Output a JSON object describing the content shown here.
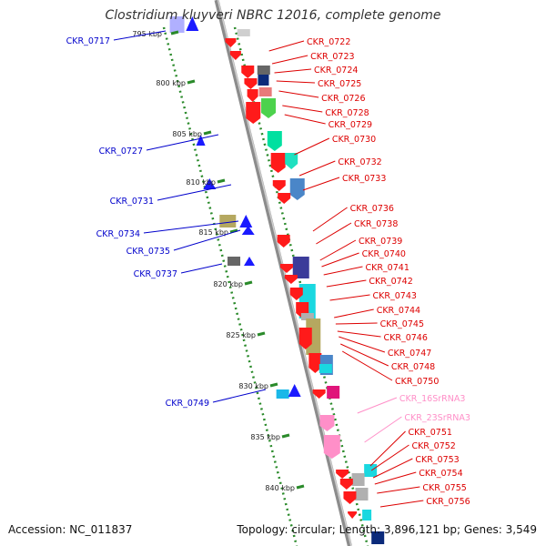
{
  "title": "Clostridium kluyveri NBRC 12016, complete genome",
  "footer": {
    "accession": "Accession: NC_011837",
    "topology": "Topology: circular; Length: 3,896,121 bp; Genes: 3,549"
  },
  "kbp_ticks": [
    "795 kbp",
    "800 kbp",
    "805 kbp",
    "810 kbp",
    "815 kbp",
    "820 kbp",
    "825 kbp",
    "830 kbp",
    "835 kbp",
    "840 kbp"
  ],
  "left_labels": [
    "CKR_0717",
    "CKR_0727",
    "CKR_0731",
    "CKR_0734",
    "CKR_0735",
    "CKR_0737",
    "CKR_0749"
  ],
  "right_labels": [
    "CKR_0722",
    "CKR_0723",
    "CKR_0724",
    "CKR_0725",
    "CKR_0726",
    "CKR_0728",
    "CKR_0729",
    "CKR_0730",
    "CKR_0732",
    "CKR_0733",
    "CKR_0736",
    "CKR_0738",
    "CKR_0739",
    "CKR_0740",
    "CKR_0741",
    "CKR_0742",
    "CKR_0743",
    "CKR_0744",
    "CKR_0745",
    "CKR_0746",
    "CKR_0747",
    "CKR_0748",
    "CKR_0750",
    "CKR_16SrRNA3",
    "CKR_23SrRNA3",
    "CKR_0751",
    "CKR_0752",
    "CKR_0753",
    "CKR_0754",
    "CKR_0755",
    "CKR_0756"
  ],
  "colors": {
    "forward_gene": "#ff1a1a",
    "reverse_gene": "#1a1aff",
    "rrna": "#ff8fc8",
    "backbone": "#999999",
    "tick_dots": "#2a8a2a",
    "left_label_text": "#0000cc",
    "right_label_text": "#dd0000",
    "rrna_label_text": "#ff8fc8"
  }
}
